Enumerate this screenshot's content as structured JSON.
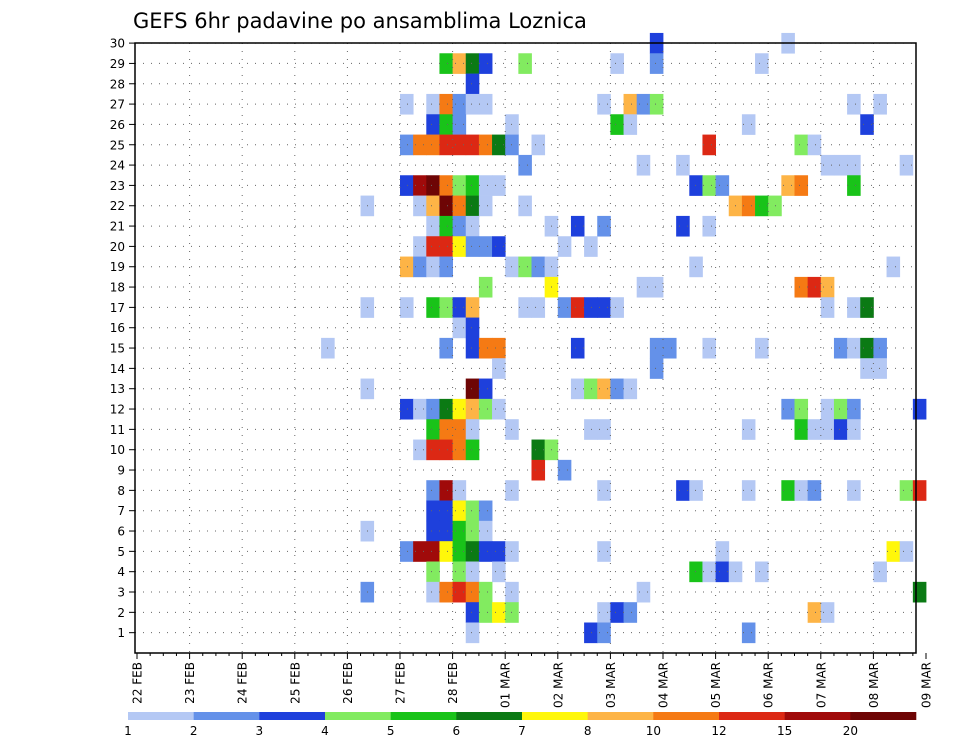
{
  "chart_data": {
    "type": "heatmap",
    "title": "GEFS 6hr padavine po ansamblima Loznica",
    "xlabel": "",
    "ylabel": "",
    "x_step_hours": 6,
    "x_ticks": [
      "22 FEB",
      "23 FEB",
      "24 FEB",
      "25 FEB",
      "26 FEB",
      "27 FEB",
      "28 FEB",
      "01 MAR",
      "02 MAR",
      "03 MAR",
      "04 MAR",
      "05 MAR",
      "06 MAR",
      "07 MAR",
      "08 MAR",
      "09 MAR"
    ],
    "y_ticks": [
      1,
      2,
      3,
      4,
      5,
      6,
      7,
      8,
      9,
      10,
      11,
      12,
      13,
      14,
      15,
      16,
      17,
      18,
      19,
      20,
      21,
      22,
      23,
      24,
      25,
      26,
      27,
      28,
      29,
      30
    ],
    "ylim": [
      0,
      30
    ],
    "grid": true,
    "colorbar": {
      "levels": [
        1,
        2,
        3,
        4,
        5,
        6,
        7,
        8,
        10,
        12,
        15,
        20
      ],
      "colors": [
        "#b4c8f4",
        "#6491e9",
        "#1e40dc",
        "#82eb60",
        "#19c319",
        "#0b7a14",
        "#fff70a",
        "#fdb446",
        "#f57a14",
        "#dc2814",
        "#a00a0a",
        "#6e0505"
      ]
    },
    "cells": [
      {
        "t": 39,
        "m": 30,
        "c": 2
      },
      {
        "t": 49,
        "m": 30,
        "c": 0
      },
      {
        "t": 23,
        "m": 29,
        "c": 4
      },
      {
        "t": 24,
        "m": 29,
        "c": 7
      },
      {
        "t": 25,
        "m": 29,
        "c": 5
      },
      {
        "t": 26,
        "m": 29,
        "c": 2
      },
      {
        "t": 29,
        "m": 29,
        "c": 3
      },
      {
        "t": 36,
        "m": 29,
        "c": 0
      },
      {
        "t": 39,
        "m": 29,
        "c": 1
      },
      {
        "t": 47,
        "m": 29,
        "c": 0
      },
      {
        "t": 25,
        "m": 28,
        "c": 2
      },
      {
        "t": 20,
        "m": 27,
        "c": 0
      },
      {
        "t": 22,
        "m": 27,
        "c": 0
      },
      {
        "t": 23,
        "m": 27,
        "c": 8
      },
      {
        "t": 24,
        "m": 27,
        "c": 1
      },
      {
        "t": 25,
        "m": 27,
        "c": 0
      },
      {
        "t": 26,
        "m": 27,
        "c": 0
      },
      {
        "t": 35,
        "m": 27,
        "c": 0
      },
      {
        "t": 37,
        "m": 27,
        "c": 7
      },
      {
        "t": 38,
        "m": 27,
        "c": 1
      },
      {
        "t": 39,
        "m": 27,
        "c": 3
      },
      {
        "t": 54,
        "m": 27,
        "c": 0
      },
      {
        "t": 56,
        "m": 27,
        "c": 0
      },
      {
        "t": 22,
        "m": 26,
        "c": 2
      },
      {
        "t": 23,
        "m": 26,
        "c": 4
      },
      {
        "t": 24,
        "m": 26,
        "c": 1
      },
      {
        "t": 28,
        "m": 26,
        "c": 0
      },
      {
        "t": 36,
        "m": 26,
        "c": 4
      },
      {
        "t": 37,
        "m": 26,
        "c": 0
      },
      {
        "t": 46,
        "m": 26,
        "c": 0
      },
      {
        "t": 55,
        "m": 26,
        "c": 2
      },
      {
        "t": 20,
        "m": 25,
        "c": 1
      },
      {
        "t": 21,
        "m": 25,
        "c": 8
      },
      {
        "t": 22,
        "m": 25,
        "c": 8
      },
      {
        "t": 23,
        "m": 25,
        "c": 9
      },
      {
        "t": 24,
        "m": 25,
        "c": 9
      },
      {
        "t": 25,
        "m": 25,
        "c": 9
      },
      {
        "t": 26,
        "m": 25,
        "c": 8
      },
      {
        "t": 27,
        "m": 25,
        "c": 5
      },
      {
        "t": 28,
        "m": 25,
        "c": 1
      },
      {
        "t": 30,
        "m": 25,
        "c": 0
      },
      {
        "t": 43,
        "m": 25,
        "c": 9
      },
      {
        "t": 50,
        "m": 25,
        "c": 3
      },
      {
        "t": 51,
        "m": 25,
        "c": 0
      },
      {
        "t": 29,
        "m": 24,
        "c": 1
      },
      {
        "t": 38,
        "m": 24,
        "c": 0
      },
      {
        "t": 41,
        "m": 24,
        "c": 0
      },
      {
        "t": 52,
        "m": 24,
        "c": 0
      },
      {
        "t": 53,
        "m": 24,
        "c": 0
      },
      {
        "t": 54,
        "m": 24,
        "c": 0
      },
      {
        "t": 58,
        "m": 24,
        "c": 0
      },
      {
        "t": 20,
        "m": 23,
        "c": 2
      },
      {
        "t": 21,
        "m": 23,
        "c": 10
      },
      {
        "t": 22,
        "m": 23,
        "c": 11
      },
      {
        "t": 23,
        "m": 23,
        "c": 8
      },
      {
        "t": 24,
        "m": 23,
        "c": 3
      },
      {
        "t": 25,
        "m": 23,
        "c": 4
      },
      {
        "t": 26,
        "m": 23,
        "c": 0
      },
      {
        "t": 27,
        "m": 23,
        "c": 0
      },
      {
        "t": 42,
        "m": 23,
        "c": 2
      },
      {
        "t": 43,
        "m": 23,
        "c": 3
      },
      {
        "t": 44,
        "m": 23,
        "c": 1
      },
      {
        "t": 49,
        "m": 23,
        "c": 7
      },
      {
        "t": 50,
        "m": 23,
        "c": 8
      },
      {
        "t": 54,
        "m": 23,
        "c": 4
      },
      {
        "t": 17,
        "m": 22,
        "c": 0
      },
      {
        "t": 21,
        "m": 22,
        "c": 0
      },
      {
        "t": 22,
        "m": 22,
        "c": 7
      },
      {
        "t": 23,
        "m": 22,
        "c": 11
      },
      {
        "t": 24,
        "m": 22,
        "c": 8
      },
      {
        "t": 25,
        "m": 22,
        "c": 5
      },
      {
        "t": 26,
        "m": 22,
        "c": 0
      },
      {
        "t": 29,
        "m": 22,
        "c": 0
      },
      {
        "t": 45,
        "m": 22,
        "c": 7
      },
      {
        "t": 46,
        "m": 22,
        "c": 8
      },
      {
        "t": 47,
        "m": 22,
        "c": 4
      },
      {
        "t": 48,
        "m": 22,
        "c": 3
      },
      {
        "t": 22,
        "m": 21,
        "c": 0
      },
      {
        "t": 23,
        "m": 21,
        "c": 4
      },
      {
        "t": 24,
        "m": 21,
        "c": 1
      },
      {
        "t": 25,
        "m": 21,
        "c": 0
      },
      {
        "t": 31,
        "m": 21,
        "c": 0
      },
      {
        "t": 33,
        "m": 21,
        "c": 2
      },
      {
        "t": 35,
        "m": 21,
        "c": 1
      },
      {
        "t": 41,
        "m": 21,
        "c": 2
      },
      {
        "t": 43,
        "m": 21,
        "c": 0
      },
      {
        "t": 21,
        "m": 20,
        "c": 0
      },
      {
        "t": 22,
        "m": 20,
        "c": 9
      },
      {
        "t": 23,
        "m": 20,
        "c": 9
      },
      {
        "t": 24,
        "m": 20,
        "c": 6
      },
      {
        "t": 25,
        "m": 20,
        "c": 1
      },
      {
        "t": 26,
        "m": 20,
        "c": 1
      },
      {
        "t": 27,
        "m": 20,
        "c": 2
      },
      {
        "t": 32,
        "m": 20,
        "c": 0
      },
      {
        "t": 34,
        "m": 20,
        "c": 0
      },
      {
        "t": 20,
        "m": 19,
        "c": 7
      },
      {
        "t": 21,
        "m": 19,
        "c": 1
      },
      {
        "t": 22,
        "m": 19,
        "c": 0
      },
      {
        "t": 23,
        "m": 19,
        "c": 1
      },
      {
        "t": 28,
        "m": 19,
        "c": 0
      },
      {
        "t": 29,
        "m": 19,
        "c": 3
      },
      {
        "t": 30,
        "m": 19,
        "c": 1
      },
      {
        "t": 31,
        "m": 19,
        "c": 0
      },
      {
        "t": 42,
        "m": 19,
        "c": 0
      },
      {
        "t": 57,
        "m": 19,
        "c": 0
      },
      {
        "t": 26,
        "m": 18,
        "c": 3
      },
      {
        "t": 31,
        "m": 18,
        "c": 6
      },
      {
        "t": 38,
        "m": 18,
        "c": 0
      },
      {
        "t": 39,
        "m": 18,
        "c": 0
      },
      {
        "t": 50,
        "m": 18,
        "c": 8
      },
      {
        "t": 51,
        "m": 18,
        "c": 9
      },
      {
        "t": 52,
        "m": 18,
        "c": 7
      },
      {
        "t": 17,
        "m": 17,
        "c": 0
      },
      {
        "t": 20,
        "m": 17,
        "c": 0
      },
      {
        "t": 22,
        "m": 17,
        "c": 4
      },
      {
        "t": 23,
        "m": 17,
        "c": 3
      },
      {
        "t": 24,
        "m": 17,
        "c": 2
      },
      {
        "t": 25,
        "m": 17,
        "c": 7
      },
      {
        "t": 29,
        "m": 17,
        "c": 0
      },
      {
        "t": 30,
        "m": 17,
        "c": 0
      },
      {
        "t": 32,
        "m": 17,
        "c": 1
      },
      {
        "t": 33,
        "m": 17,
        "c": 9
      },
      {
        "t": 34,
        "m": 17,
        "c": 2
      },
      {
        "t": 35,
        "m": 17,
        "c": 2
      },
      {
        "t": 36,
        "m": 17,
        "c": 0
      },
      {
        "t": 52,
        "m": 17,
        "c": 0
      },
      {
        "t": 54,
        "m": 17,
        "c": 0
      },
      {
        "t": 55,
        "m": 17,
        "c": 5
      },
      {
        "t": 24,
        "m": 16,
        "c": 0
      },
      {
        "t": 25,
        "m": 16,
        "c": 2
      },
      {
        "t": 14,
        "m": 15,
        "c": 0
      },
      {
        "t": 23,
        "m": 15,
        "c": 1
      },
      {
        "t": 25,
        "m": 15,
        "c": 2
      },
      {
        "t": 26,
        "m": 15,
        "c": 8
      },
      {
        "t": 27,
        "m": 15,
        "c": 8
      },
      {
        "t": 33,
        "m": 15,
        "c": 2
      },
      {
        "t": 39,
        "m": 15,
        "c": 1
      },
      {
        "t": 40,
        "m": 15,
        "c": 1
      },
      {
        "t": 43,
        "m": 15,
        "c": 0
      },
      {
        "t": 47,
        "m": 15,
        "c": 0
      },
      {
        "t": 53,
        "m": 15,
        "c": 1
      },
      {
        "t": 54,
        "m": 15,
        "c": 0
      },
      {
        "t": 55,
        "m": 15,
        "c": 5
      },
      {
        "t": 56,
        "m": 15,
        "c": 1
      },
      {
        "t": 27,
        "m": 14,
        "c": 0
      },
      {
        "t": 39,
        "m": 14,
        "c": 1
      },
      {
        "t": 55,
        "m": 14,
        "c": 0
      },
      {
        "t": 56,
        "m": 14,
        "c": 0
      },
      {
        "t": 17,
        "m": 13,
        "c": 0
      },
      {
        "t": 25,
        "m": 13,
        "c": 11
      },
      {
        "t": 26,
        "m": 13,
        "c": 2
      },
      {
        "t": 33,
        "m": 13,
        "c": 0
      },
      {
        "t": 34,
        "m": 13,
        "c": 3
      },
      {
        "t": 35,
        "m": 13,
        "c": 7
      },
      {
        "t": 36,
        "m": 13,
        "c": 1
      },
      {
        "t": 37,
        "m": 13,
        "c": 0
      },
      {
        "t": 20,
        "m": 12,
        "c": 2
      },
      {
        "t": 21,
        "m": 12,
        "c": 0
      },
      {
        "t": 22,
        "m": 12,
        "c": 1
      },
      {
        "t": 23,
        "m": 12,
        "c": 5
      },
      {
        "t": 24,
        "m": 12,
        "c": 6
      },
      {
        "t": 25,
        "m": 12,
        "c": 7
      },
      {
        "t": 26,
        "m": 12,
        "c": 3
      },
      {
        "t": 27,
        "m": 12,
        "c": 0
      },
      {
        "t": 49,
        "m": 12,
        "c": 1
      },
      {
        "t": 50,
        "m": 12,
        "c": 3
      },
      {
        "t": 52,
        "m": 12,
        "c": 0
      },
      {
        "t": 53,
        "m": 12,
        "c": 3
      },
      {
        "t": 54,
        "m": 12,
        "c": 1
      },
      {
        "t": 59,
        "m": 12,
        "c": 2
      },
      {
        "t": 22,
        "m": 11,
        "c": 4
      },
      {
        "t": 23,
        "m": 11,
        "c": 8
      },
      {
        "t": 24,
        "m": 11,
        "c": 8
      },
      {
        "t": 25,
        "m": 11,
        "c": 0
      },
      {
        "t": 28,
        "m": 11,
        "c": 0
      },
      {
        "t": 34,
        "m": 11,
        "c": 0
      },
      {
        "t": 35,
        "m": 11,
        "c": 0
      },
      {
        "t": 46,
        "m": 11,
        "c": 0
      },
      {
        "t": 50,
        "m": 11,
        "c": 4
      },
      {
        "t": 51,
        "m": 11,
        "c": 0
      },
      {
        "t": 52,
        "m": 11,
        "c": 0
      },
      {
        "t": 53,
        "m": 11,
        "c": 2
      },
      {
        "t": 54,
        "m": 11,
        "c": 0
      },
      {
        "t": 21,
        "m": 10,
        "c": 0
      },
      {
        "t": 22,
        "m": 10,
        "c": 9
      },
      {
        "t": 23,
        "m": 10,
        "c": 9
      },
      {
        "t": 24,
        "m": 10,
        "c": 8
      },
      {
        "t": 25,
        "m": 10,
        "c": 4
      },
      {
        "t": 30,
        "m": 10,
        "c": 5
      },
      {
        "t": 31,
        "m": 10,
        "c": 3
      },
      {
        "t": 30,
        "m": 9,
        "c": 9
      },
      {
        "t": 32,
        "m": 9,
        "c": 1
      },
      {
        "t": 22,
        "m": 8,
        "c": 1
      },
      {
        "t": 23,
        "m": 8,
        "c": 10
      },
      {
        "t": 24,
        "m": 8,
        "c": 0
      },
      {
        "t": 28,
        "m": 8,
        "c": 0
      },
      {
        "t": 35,
        "m": 8,
        "c": 0
      },
      {
        "t": 41,
        "m": 8,
        "c": 2
      },
      {
        "t": 42,
        "m": 8,
        "c": 0
      },
      {
        "t": 46,
        "m": 8,
        "c": 0
      },
      {
        "t": 49,
        "m": 8,
        "c": 4
      },
      {
        "t": 50,
        "m": 8,
        "c": 0
      },
      {
        "t": 51,
        "m": 8,
        "c": 1
      },
      {
        "t": 54,
        "m": 8,
        "c": 0
      },
      {
        "t": 58,
        "m": 8,
        "c": 3
      },
      {
        "t": 59,
        "m": 8,
        "c": 9
      },
      {
        "t": 22,
        "m": 7,
        "c": 2
      },
      {
        "t": 23,
        "m": 7,
        "c": 2
      },
      {
        "t": 24,
        "m": 7,
        "c": 6
      },
      {
        "t": 25,
        "m": 7,
        "c": 3
      },
      {
        "t": 26,
        "m": 7,
        "c": 1
      },
      {
        "t": 17,
        "m": 6,
        "c": 0
      },
      {
        "t": 22,
        "m": 6,
        "c": 2
      },
      {
        "t": 23,
        "m": 6,
        "c": 2
      },
      {
        "t": 24,
        "m": 6,
        "c": 4
      },
      {
        "t": 25,
        "m": 6,
        "c": 3
      },
      {
        "t": 26,
        "m": 6,
        "c": 0
      },
      {
        "t": 20,
        "m": 5,
        "c": 1
      },
      {
        "t": 21,
        "m": 5,
        "c": 10
      },
      {
        "t": 22,
        "m": 5,
        "c": 10
      },
      {
        "t": 23,
        "m": 5,
        "c": 6
      },
      {
        "t": 24,
        "m": 5,
        "c": 4
      },
      {
        "t": 25,
        "m": 5,
        "c": 5
      },
      {
        "t": 26,
        "m": 5,
        "c": 2
      },
      {
        "t": 27,
        "m": 5,
        "c": 2
      },
      {
        "t": 28,
        "m": 5,
        "c": 0
      },
      {
        "t": 35,
        "m": 5,
        "c": 0
      },
      {
        "t": 44,
        "m": 5,
        "c": 0
      },
      {
        "t": 57,
        "m": 5,
        "c": 6
      },
      {
        "t": 58,
        "m": 5,
        "c": 0
      },
      {
        "t": 22,
        "m": 4,
        "c": 3
      },
      {
        "t": 24,
        "m": 4,
        "c": 3
      },
      {
        "t": 25,
        "m": 4,
        "c": 0
      },
      {
        "t": 27,
        "m": 4,
        "c": 0
      },
      {
        "t": 42,
        "m": 4,
        "c": 4
      },
      {
        "t": 43,
        "m": 4,
        "c": 0
      },
      {
        "t": 44,
        "m": 4,
        "c": 2
      },
      {
        "t": 45,
        "m": 4,
        "c": 0
      },
      {
        "t": 47,
        "m": 4,
        "c": 0
      },
      {
        "t": 56,
        "m": 4,
        "c": 0
      },
      {
        "t": 17,
        "m": 3,
        "c": 1
      },
      {
        "t": 22,
        "m": 3,
        "c": 0
      },
      {
        "t": 23,
        "m": 3,
        "c": 8
      },
      {
        "t": 24,
        "m": 3,
        "c": 9
      },
      {
        "t": 25,
        "m": 3,
        "c": 8
      },
      {
        "t": 26,
        "m": 3,
        "c": 3
      },
      {
        "t": 28,
        "m": 3,
        "c": 0
      },
      {
        "t": 38,
        "m": 3,
        "c": 0
      },
      {
        "t": 59,
        "m": 3,
        "c": 5
      },
      {
        "t": 25,
        "m": 2,
        "c": 2
      },
      {
        "t": 26,
        "m": 2,
        "c": 3
      },
      {
        "t": 27,
        "m": 2,
        "c": 6
      },
      {
        "t": 28,
        "m": 2,
        "c": 3
      },
      {
        "t": 35,
        "m": 2,
        "c": 0
      },
      {
        "t": 36,
        "m": 2,
        "c": 2
      },
      {
        "t": 37,
        "m": 2,
        "c": 1
      },
      {
        "t": 51,
        "m": 2,
        "c": 7
      },
      {
        "t": 52,
        "m": 2,
        "c": 0
      },
      {
        "t": 25,
        "m": 1,
        "c": 0
      },
      {
        "t": 34,
        "m": 1,
        "c": 2
      },
      {
        "t": 35,
        "m": 1,
        "c": 1
      },
      {
        "t": 46,
        "m": 1,
        "c": 1
      }
    ]
  }
}
